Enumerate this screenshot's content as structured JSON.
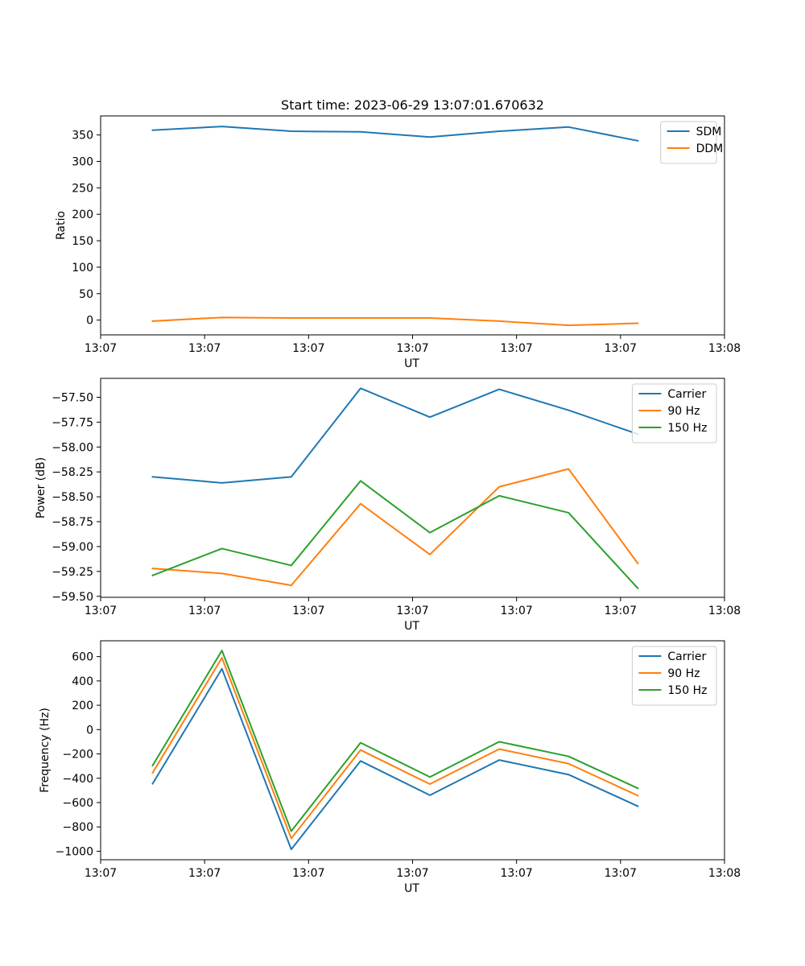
{
  "chart_data": [
    {
      "type": "line",
      "title": "Start time: 2023-06-29 13:07:01.670632",
      "xlabel": "UT",
      "ylabel": "Ratio",
      "x": [
        1,
        2,
        3,
        4,
        5,
        6,
        7,
        8
      ],
      "xlim": [
        0.25,
        9.25
      ],
      "xticks": [
        0.25,
        1.75,
        3.25,
        4.75,
        6.25,
        7.75,
        9.25
      ],
      "xtick_labels": [
        "13:07",
        "13:07",
        "13:07",
        "13:07",
        "13:07",
        "13:07",
        "13:08"
      ],
      "ylim": [
        -28,
        386
      ],
      "yticks": [
        0,
        50,
        100,
        150,
        200,
        250,
        300,
        350
      ],
      "ytick_labels": [
        "0",
        "50",
        "100",
        "150",
        "200",
        "250",
        "300",
        "350"
      ],
      "grid": false,
      "legend_position": "top-right",
      "series": [
        {
          "name": "SDM",
          "color": "#1f77b4",
          "values": [
            359,
            366,
            357,
            356,
            346,
            357,
            365,
            339
          ]
        },
        {
          "name": "DDM",
          "color": "#ff7f0e",
          "values": [
            -2,
            5,
            4,
            4,
            4,
            -2,
            -10,
            -6
          ]
        }
      ]
    },
    {
      "type": "line",
      "title": "",
      "xlabel": "UT",
      "ylabel": "Power (dB)",
      "x": [
        1,
        2,
        3,
        4,
        5,
        6,
        7,
        8
      ],
      "xlim": [
        0.25,
        9.25
      ],
      "xticks": [
        0.25,
        1.75,
        3.25,
        4.75,
        6.25,
        7.75,
        9.25
      ],
      "xtick_labels": [
        "13:07",
        "13:07",
        "13:07",
        "13:07",
        "13:07",
        "13:07",
        "13:08"
      ],
      "ylim": [
        -59.51,
        -57.31
      ],
      "yticks": [
        -59.5,
        -59.25,
        -59.0,
        -58.75,
        -58.5,
        -58.25,
        -58.0,
        -57.75,
        -57.5
      ],
      "ytick_labels": [
        "−59.50",
        "−59.25",
        "−59.00",
        "−58.75",
        "−58.50",
        "−58.25",
        "−58.00",
        "−57.75",
        "−57.50"
      ],
      "grid": false,
      "legend_position": "top-right",
      "series": [
        {
          "name": "Carrier",
          "color": "#1f77b4",
          "values": [
            -58.3,
            -58.36,
            -58.3,
            -57.41,
            -57.7,
            -57.42,
            -57.63,
            -57.87
          ]
        },
        {
          "name": "90 Hz",
          "color": "#ff7f0e",
          "values": [
            -59.22,
            -59.27,
            -59.39,
            -58.57,
            -59.08,
            -58.4,
            -58.22,
            -59.17
          ]
        },
        {
          "name": "150 Hz",
          "color": "#2ca02c",
          "values": [
            -59.29,
            -59.02,
            -59.19,
            -58.34,
            -58.86,
            -58.49,
            -58.66,
            -59.42
          ]
        }
      ]
    },
    {
      "type": "line",
      "title": "",
      "xlabel": "UT",
      "ylabel": "Frequency (Hz)",
      "x": [
        1,
        2,
        3,
        4,
        5,
        6,
        7,
        8
      ],
      "xlim": [
        0.25,
        9.25
      ],
      "xticks": [
        0.25,
        1.75,
        3.25,
        4.75,
        6.25,
        7.75,
        9.25
      ],
      "xtick_labels": [
        "13:07",
        "13:07",
        "13:07",
        "13:07",
        "13:07",
        "13:07",
        "13:08"
      ],
      "ylim": [
        -1070,
        730
      ],
      "yticks": [
        -1000,
        -800,
        -600,
        -400,
        -200,
        0,
        200,
        400,
        600
      ],
      "ytick_labels": [
        "−1000",
        "−800",
        "−600",
        "−400",
        "−200",
        "0",
        "200",
        "400",
        "600"
      ],
      "grid": false,
      "legend_position": "top-right",
      "series": [
        {
          "name": "Carrier",
          "color": "#1f77b4",
          "values": [
            -445,
            500,
            -985,
            -258,
            -540,
            -250,
            -370,
            -630
          ]
        },
        {
          "name": "90 Hz",
          "color": "#ff7f0e",
          "values": [
            -355,
            590,
            -895,
            -168,
            -448,
            -160,
            -280,
            -543
          ]
        },
        {
          "name": "150 Hz",
          "color": "#2ca02c",
          "values": [
            -295,
            650,
            -835,
            -108,
            -390,
            -100,
            -220,
            -483
          ]
        }
      ]
    }
  ]
}
